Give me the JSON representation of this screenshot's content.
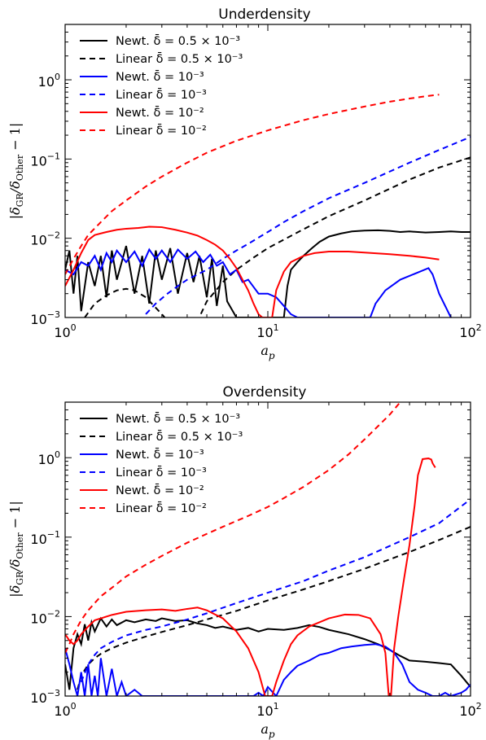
{
  "chart_data": [
    {
      "type": "line",
      "title": "Underdensity",
      "xlabel": "a_p",
      "ylabel": "|δ_GR/δ_Other − 1|",
      "xscale": "log",
      "yscale": "log",
      "xlim": [
        1,
        100
      ],
      "ylim": [
        0.001,
        5
      ],
      "xticks": [
        "10^0",
        "10^1",
        "10^2"
      ],
      "yticks": [
        "10^-3",
        "10^-2",
        "10^-1",
        "10^0"
      ],
      "legend_position": "upper-left",
      "series": [
        {
          "name": "Newt. δ̄ = 0.5 × 10⁻³",
          "color": "#000000",
          "dash": "solid",
          "x": [
            1.0,
            1.05,
            1.1,
            1.15,
            1.2,
            1.3,
            1.4,
            1.5,
            1.6,
            1.7,
            1.8,
            2.0,
            2.2,
            2.4,
            2.6,
            2.8,
            3.0,
            3.3,
            3.6,
            4.0,
            4.3,
            4.6,
            5.0,
            5.3,
            5.6,
            6.0,
            6.3,
            7.0,
            12.0,
            12.5,
            13.0,
            14.0,
            15.0,
            16.5,
            18.0,
            20.0,
            23.0,
            26.0,
            30.0,
            35.0,
            40.0,
            45.0,
            50.0,
            60.0,
            70.0,
            80.0,
            90.0,
            100.0
          ],
          "y": [
            0.004,
            0.007,
            0.002,
            0.006,
            0.0012,
            0.005,
            0.0025,
            0.006,
            0.0018,
            0.007,
            0.003,
            0.008,
            0.002,
            0.006,
            0.0015,
            0.007,
            0.003,
            0.0075,
            0.002,
            0.0065,
            0.0028,
            0.006,
            0.0018,
            0.0055,
            0.0014,
            0.0045,
            0.0016,
            0.001,
            0.001,
            0.0025,
            0.004,
            0.005,
            0.006,
            0.0075,
            0.009,
            0.0105,
            0.0115,
            0.0122,
            0.0125,
            0.0126,
            0.0124,
            0.012,
            0.0122,
            0.0118,
            0.012,
            0.0122,
            0.012,
            0.012
          ]
        },
        {
          "name": "Linear δ̄ = 0.5 × 10⁻³",
          "color": "#000000",
          "dash": "dashed",
          "x": [
            1.25,
            1.4,
            1.6,
            1.8,
            2.0,
            2.2,
            2.5,
            3.0,
            3.5,
            4.0,
            4.5,
            5.0,
            6.0,
            7.0,
            8.5,
            10.0,
            15.0,
            20.0,
            30.0,
            50.0,
            70.0,
            100.0
          ],
          "y": [
            0.001,
            0.0015,
            0.0019,
            0.0022,
            0.0023,
            0.0022,
            0.0018,
            0.0011,
            0.0007,
            0.0006,
            0.0009,
            0.0016,
            0.0028,
            0.004,
            0.0057,
            0.0075,
            0.013,
            0.019,
            0.03,
            0.055,
            0.078,
            0.105
          ]
        },
        {
          "name": "Newt. δ̄ = 10⁻³",
          "color": "#0000ff",
          "dash": "solid",
          "x": [
            1.0,
            1.1,
            1.2,
            1.3,
            1.4,
            1.5,
            1.6,
            1.7,
            1.8,
            2.0,
            2.2,
            2.4,
            2.6,
            2.8,
            3.0,
            3.3,
            3.6,
            4.0,
            4.4,
            4.8,
            5.2,
            5.6,
            6.0,
            6.5,
            7.0,
            7.5,
            8.0,
            9.0,
            10.0,
            11.0,
            12.0,
            13.0,
            14.0,
            32.0,
            34.0,
            38.0,
            45.0,
            55.0,
            62.0,
            65.0,
            70.0,
            80.0
          ],
          "y": [
            0.004,
            0.0035,
            0.005,
            0.0045,
            0.006,
            0.004,
            0.0065,
            0.005,
            0.007,
            0.005,
            0.0068,
            0.0045,
            0.0072,
            0.0055,
            0.007,
            0.005,
            0.0072,
            0.0055,
            0.0068,
            0.005,
            0.0062,
            0.0045,
            0.005,
            0.0035,
            0.004,
            0.0028,
            0.003,
            0.002,
            0.002,
            0.0018,
            0.0014,
            0.0011,
            0.001,
            0.001,
            0.0015,
            0.0022,
            0.003,
            0.0037,
            0.0042,
            0.0035,
            0.002,
            0.001
          ]
        },
        {
          "name": "Linear δ̄ = 10⁻³",
          "color": "#0000ff",
          "dash": "dashed",
          "x": [
            2.5,
            2.8,
            3.2,
            3.6,
            4.0,
            4.5,
            5.0,
            6.0,
            7.0,
            8.0,
            10.0,
            12.0,
            15.0,
            20.0,
            30.0,
            50.0,
            70.0,
            100.0
          ],
          "y": [
            0.0011,
            0.0015,
            0.002,
            0.0025,
            0.003,
            0.0035,
            0.004,
            0.0055,
            0.007,
            0.0085,
            0.012,
            0.016,
            0.022,
            0.032,
            0.05,
            0.09,
            0.13,
            0.19
          ]
        },
        {
          "name": "Newt. δ̄ = 10⁻²",
          "color": "#ff0000",
          "dash": "solid",
          "x": [
            1.0,
            1.1,
            1.2,
            1.3,
            1.4,
            1.6,
            1.8,
            2.0,
            2.3,
            2.6,
            3.0,
            3.5,
            4.0,
            4.5,
            5.0,
            5.5,
            6.0,
            6.5,
            7.0,
            7.5,
            8.0,
            8.5,
            9.0,
            9.4,
            10.5,
            11.0,
            12.0,
            13.0,
            15.0,
            17.0,
            20.0,
            25.0,
            30.0,
            40.0,
            50.0,
            60.0,
            70.0
          ],
          "y": [
            0.0025,
            0.004,
            0.0065,
            0.0095,
            0.011,
            0.012,
            0.0128,
            0.0132,
            0.0135,
            0.014,
            0.0138,
            0.0128,
            0.0118,
            0.0108,
            0.0095,
            0.0083,
            0.007,
            0.0055,
            0.0042,
            0.003,
            0.0022,
            0.0015,
            0.0011,
            0.001,
            0.001,
            0.0022,
            0.0038,
            0.005,
            0.006,
            0.0065,
            0.0068,
            0.0068,
            0.0066,
            0.0063,
            0.006,
            0.0057,
            0.0054
          ]
        },
        {
          "name": "Linear δ̄ = 10⁻²",
          "color": "#ff0000",
          "dash": "dashed",
          "x": [
            1.0,
            1.1,
            1.2,
            1.3,
            1.5,
            1.7,
            2.0,
            2.5,
            3.0,
            4.0,
            5.0,
            7.0,
            10.0,
            15.0,
            20.0,
            30.0,
            40.0,
            50.0,
            60.0,
            70.0
          ],
          "y": [
            0.0035,
            0.0055,
            0.008,
            0.011,
            0.016,
            0.022,
            0.03,
            0.045,
            0.06,
            0.09,
            0.12,
            0.17,
            0.23,
            0.31,
            0.37,
            0.46,
            0.53,
            0.58,
            0.62,
            0.65
          ]
        }
      ]
    },
    {
      "type": "line",
      "title": "Overdensity",
      "xlabel": "a_p",
      "ylabel": "|δ_GR/δ_Other − 1|",
      "xscale": "log",
      "yscale": "log",
      "xlim": [
        1,
        100
      ],
      "ylim": [
        0.001,
        5
      ],
      "xticks": [
        "10^0",
        "10^1",
        "10^2"
      ],
      "yticks": [
        "10^-3",
        "10^-2",
        "10^-1",
        "10^0"
      ],
      "legend_position": "upper-left",
      "series": [
        {
          "name": "Newt. δ̄ = 0.5 × 10⁻³",
          "color": "#000000",
          "dash": "solid",
          "x": [
            1.0,
            1.05,
            1.1,
            1.15,
            1.2,
            1.25,
            1.3,
            1.35,
            1.4,
            1.5,
            1.6,
            1.7,
            1.8,
            2.0,
            2.2,
            2.5,
            2.8,
            3.0,
            3.5,
            4.0,
            4.5,
            5.0,
            5.5,
            6.0,
            7.0,
            8.0,
            9.0,
            10.0,
            12.0,
            14.0,
            16.0,
            18.0,
            20.0,
            25.0,
            30.0,
            35.0,
            40.0,
            45.0,
            50.0,
            60.0,
            70.0,
            80.0,
            90.0,
            100.0
          ],
          "y": [
            0.0025,
            0.0012,
            0.004,
            0.006,
            0.0045,
            0.008,
            0.005,
            0.0085,
            0.0065,
            0.0095,
            0.0075,
            0.0092,
            0.0078,
            0.009,
            0.0085,
            0.0092,
            0.0088,
            0.0095,
            0.0088,
            0.009,
            0.0082,
            0.0078,
            0.0072,
            0.0075,
            0.0068,
            0.0072,
            0.0065,
            0.007,
            0.0068,
            0.0072,
            0.0078,
            0.0074,
            0.0068,
            0.006,
            0.0052,
            0.0045,
            0.0038,
            0.0032,
            0.0028,
            0.0027,
            0.0026,
            0.0025,
            0.0018,
            0.0013
          ]
        },
        {
          "name": "Linear δ̄ = 0.5 × 10⁻³",
          "color": "#000000",
          "dash": "dashed",
          "x": [
            1.15,
            1.2,
            1.3,
            1.4,
            1.5,
            1.7,
            2.0,
            2.5,
            3.0,
            4.0,
            5.0,
            7.0,
            10.0,
            15.0,
            20.0,
            30.0,
            50.0,
            70.0,
            100.0
          ],
          "y": [
            0.0012,
            0.0018,
            0.0025,
            0.003,
            0.0034,
            0.004,
            0.0047,
            0.0056,
            0.0064,
            0.0078,
            0.0092,
            0.0118,
            0.016,
            0.022,
            0.028,
            0.04,
            0.065,
            0.092,
            0.135
          ]
        },
        {
          "name": "Newt. δ̄ = 10⁻³",
          "color": "#0000ff",
          "dash": "solid",
          "x": [
            1.0,
            1.05,
            1.1,
            1.15,
            1.2,
            1.25,
            1.3,
            1.35,
            1.4,
            1.45,
            1.5,
            1.6,
            1.7,
            1.8,
            1.9,
            2.0,
            2.2,
            2.4,
            8.5,
            9.0,
            9.5,
            10.0,
            11.0,
            12.0,
            13.0,
            14.0,
            16.0,
            18.0,
            20.0,
            23.0,
            26.0,
            30.0,
            34.0,
            38.0,
            42.0,
            46.0,
            50.0,
            55.0,
            60.0,
            65.0,
            70.0,
            75.0,
            80.0,
            90.0,
            95.0,
            100.0
          ],
          "y": [
            0.004,
            0.0025,
            0.0015,
            0.001,
            0.002,
            0.001,
            0.0025,
            0.001,
            0.0018,
            0.001,
            0.003,
            0.001,
            0.0022,
            0.001,
            0.0015,
            0.001,
            0.0012,
            0.001,
            0.001,
            0.0011,
            0.001,
            0.0013,
            0.001,
            0.0016,
            0.002,
            0.0024,
            0.0028,
            0.0033,
            0.0035,
            0.004,
            0.0042,
            0.0044,
            0.0045,
            0.0042,
            0.0035,
            0.0025,
            0.0015,
            0.0012,
            0.0011,
            0.001,
            0.001,
            0.0011,
            0.001,
            0.0011,
            0.0012,
            0.0014
          ]
        },
        {
          "name": "Linear δ̄ = 10⁻³",
          "color": "#0000ff",
          "dash": "dashed",
          "x": [
            1.2,
            1.3,
            1.4,
            1.5,
            1.7,
            2.0,
            2.5,
            3.0,
            4.0,
            5.0,
            7.0,
            10.0,
            15.0,
            20.0,
            30.0,
            50.0,
            70.0,
            100.0
          ],
          "y": [
            0.0015,
            0.0025,
            0.0033,
            0.004,
            0.0048,
            0.0058,
            0.0068,
            0.0075,
            0.0092,
            0.011,
            0.0148,
            0.02,
            0.028,
            0.038,
            0.056,
            0.1,
            0.15,
            0.3
          ]
        },
        {
          "name": "Newt. δ̄ = 10⁻²",
          "color": "#ff0000",
          "dash": "solid",
          "x": [
            1.0,
            1.05,
            1.1,
            1.15,
            1.2,
            1.3,
            1.4,
            1.5,
            1.7,
            2.0,
            2.5,
            3.0,
            3.5,
            4.0,
            4.5,
            5.0,
            6.0,
            7.0,
            8.0,
            9.0,
            9.7,
            10.5,
            11.0,
            12.0,
            13.0,
            14.0,
            16.0,
            20.0,
            24.0,
            28.0,
            32.0,
            36.0,
            38.0,
            39.5,
            40.5,
            42.0,
            44.0,
            47.0,
            50.0,
            53.0,
            55.0,
            58.0,
            62.0,
            64.0,
            65.0,
            67.0
          ],
          "y": [
            0.006,
            0.005,
            0.0045,
            0.005,
            0.006,
            0.0075,
            0.009,
            0.0095,
            0.0105,
            0.0115,
            0.012,
            0.0123,
            0.0118,
            0.0125,
            0.013,
            0.012,
            0.0095,
            0.0065,
            0.004,
            0.002,
            0.001,
            0.001,
            0.0015,
            0.0028,
            0.0045,
            0.0058,
            0.0075,
            0.0095,
            0.0106,
            0.0105,
            0.0095,
            0.006,
            0.0035,
            0.001,
            0.001,
            0.004,
            0.01,
            0.03,
            0.08,
            0.25,
            0.6,
            0.96,
            0.98,
            0.95,
            0.85,
            0.75
          ]
        },
        {
          "name": "Linear δ̄ = 10⁻²",
          "color": "#ff0000",
          "dash": "dashed",
          "x": [
            1.0,
            1.05,
            1.1,
            1.2,
            1.3,
            1.5,
            1.7,
            2.0,
            2.5,
            3.0,
            4.0,
            5.0,
            6.0,
            7.0,
            8.0,
            10.0,
            12.0,
            15.0,
            20.0,
            25.0,
            30.0,
            35.0,
            40.0,
            45.0
          ],
          "y": [
            0.0035,
            0.0045,
            0.006,
            0.009,
            0.012,
            0.018,
            0.023,
            0.032,
            0.045,
            0.058,
            0.085,
            0.11,
            0.135,
            0.16,
            0.185,
            0.24,
            0.31,
            0.43,
            0.7,
            1.1,
            1.7,
            2.5,
            3.5,
            5.0
          ]
        }
      ]
    }
  ]
}
